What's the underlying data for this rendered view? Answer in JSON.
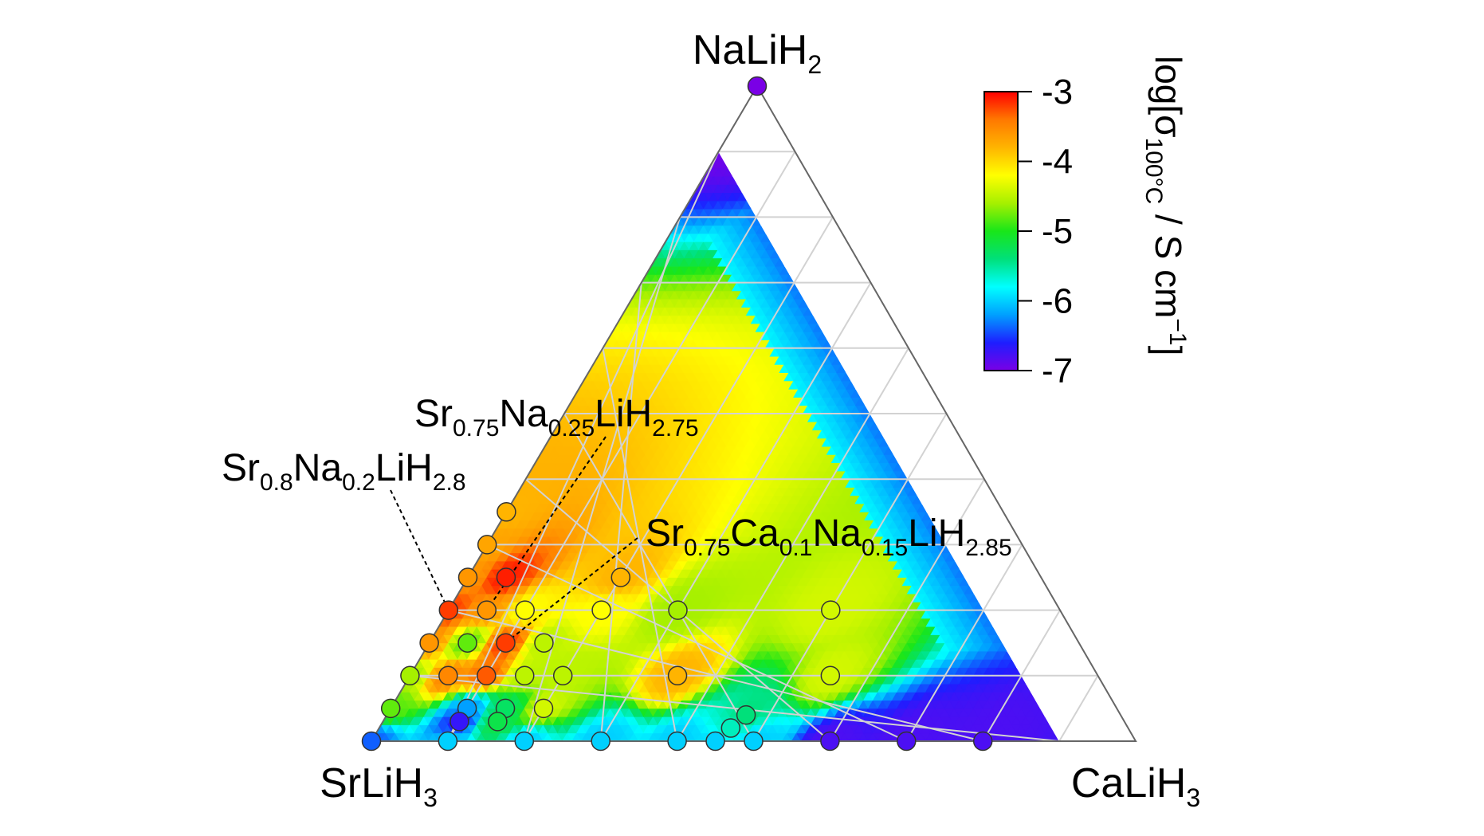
{
  "chart_data": {
    "type": "ternary-contour",
    "vertices": {
      "top": {
        "base": "NaLiH",
        "sub": "2"
      },
      "left": {
        "base": "SrLiH",
        "sub": "3"
      },
      "right": {
        "base": "CaLiH",
        "sub": "3"
      }
    },
    "colorbar": {
      "label": "log[σ100°C / S cm−1]",
      "label_parts": {
        "pre": "log[σ",
        "sub": "100°C",
        "mid": " / S cm",
        "sup": "−1",
        "post": "]"
      },
      "ticks": [
        "-3",
        "-4",
        "-5",
        "-6",
        "-7"
      ],
      "range": [
        -7,
        -3
      ],
      "colors": [
        "#7a00e6",
        "#1e1eff",
        "#00a0ff",
        "#00ffff",
        "#00e07a",
        "#19e619",
        "#a6f000",
        "#ffff00",
        "#ffb400",
        "#ff7800",
        "#ff0000"
      ]
    },
    "grid": true,
    "grid_step": 0.1,
    "points": [
      {
        "Na": 1.0,
        "Ca": 0.0,
        "logsigma": -7.0
      },
      {
        "Na": 0.0,
        "Ca": 0.0,
        "logsigma": -6.4
      },
      {
        "Na": 0.05,
        "Ca": 0.0,
        "logsigma": -4.8
      },
      {
        "Na": 0.1,
        "Ca": 0.0,
        "logsigma": -4.6
      },
      {
        "Na": 0.15,
        "Ca": 0.0,
        "logsigma": -3.6
      },
      {
        "Na": 0.2,
        "Ca": 0.0,
        "logsigma": -3.2
      },
      {
        "Na": 0.25,
        "Ca": 0.0,
        "logsigma": -3.6
      },
      {
        "Na": 0.3,
        "Ca": 0.0,
        "logsigma": -3.7
      },
      {
        "Na": 0.35,
        "Ca": 0.0,
        "logsigma": -3.8
      },
      {
        "Na": 0.2,
        "Ca": 0.05,
        "logsigma": -3.6
      },
      {
        "Na": 0.25,
        "Ca": 0.05,
        "logsigma": -3.1
      },
      {
        "Na": 0.15,
        "Ca": 0.05,
        "logsigma": -4.8
      },
      {
        "Na": 0.1,
        "Ca": 0.1,
        "logsigma": -3.3
      },
      {
        "Na": 0.15,
        "Ca": 0.1,
        "logsigma": -3.2
      },
      {
        "Na": 0.05,
        "Ca": 0.1,
        "logsigma": -6.2
      },
      {
        "Na": 0.03,
        "Ca": 0.1,
        "logsigma": -6.7
      },
      {
        "Na": 0.1,
        "Ca": 0.05,
        "logsigma": -3.5
      },
      {
        "Na": 0.2,
        "Ca": 0.1,
        "logsigma": -4.2
      },
      {
        "Na": 0.15,
        "Ca": 0.15,
        "logsigma": -4.5
      },
      {
        "Na": 0.1,
        "Ca": 0.15,
        "logsigma": -4.5
      },
      {
        "Na": 0.05,
        "Ca": 0.15,
        "logsigma": -5.3
      },
      {
        "Na": 0.03,
        "Ca": 0.15,
        "logsigma": -5.2
      },
      {
        "Na": 0.2,
        "Ca": 0.2,
        "logsigma": -4.2
      },
      {
        "Na": 0.25,
        "Ca": 0.2,
        "logsigma": -3.8
      },
      {
        "Na": 0.1,
        "Ca": 0.2,
        "logsigma": -4.5
      },
      {
        "Na": 0.05,
        "Ca": 0.2,
        "logsigma": -4.4
      },
      {
        "Na": 0.2,
        "Ca": 0.3,
        "logsigma": -4.6
      },
      {
        "Na": 0.1,
        "Ca": 0.35,
        "logsigma": -3.8
      },
      {
        "Na": 0.2,
        "Ca": 0.5,
        "logsigma": -4.4
      },
      {
        "Na": 0.1,
        "Ca": 0.55,
        "logsigma": -4.4
      },
      {
        "Na": 0.0,
        "Ca": 0.1,
        "logsigma": -6.0
      },
      {
        "Na": 0.0,
        "Ca": 0.2,
        "logsigma": -6.0
      },
      {
        "Na": 0.0,
        "Ca": 0.3,
        "logsigma": -6.0
      },
      {
        "Na": 0.0,
        "Ca": 0.4,
        "logsigma": -6.0
      },
      {
        "Na": 0.0,
        "Ca": 0.45,
        "logsigma": -6.0
      },
      {
        "Na": 0.0,
        "Ca": 0.5,
        "logsigma": -6.0
      },
      {
        "Na": 0.02,
        "Ca": 0.46,
        "logsigma": -5.6
      },
      {
        "Na": 0.04,
        "Ca": 0.47,
        "logsigma": -5.4
      },
      {
        "Na": 0.0,
        "Ca": 0.6,
        "logsigma": -6.8
      },
      {
        "Na": 0.0,
        "Ca": 0.7,
        "logsigma": -6.8
      },
      {
        "Na": 0.0,
        "Ca": 0.8,
        "logsigma": -6.8
      }
    ],
    "annotations": [
      {
        "parts": [
          {
            "t": "Sr"
          },
          {
            "t": "0.75",
            "sub": true
          },
          {
            "t": "Na"
          },
          {
            "t": "0.25",
            "sub": true
          },
          {
            "t": "LiH"
          },
          {
            "t": "2.75",
            "sub": true
          }
        ],
        "target": {
          "Na": 0.2,
          "Ca": 0.05
        }
      },
      {
        "parts": [
          {
            "t": "Sr"
          },
          {
            "t": "0.8",
            "sub": true
          },
          {
            "t": "Na"
          },
          {
            "t": "0.2",
            "sub": true
          },
          {
            "t": "LiH"
          },
          {
            "t": "2.8",
            "sub": true
          }
        ],
        "target": {
          "Na": 0.2,
          "Ca": 0.0
        }
      },
      {
        "parts": [
          {
            "t": "Sr"
          },
          {
            "t": "0.75",
            "sub": true
          },
          {
            "t": "Ca"
          },
          {
            "t": "0.1",
            "sub": true
          },
          {
            "t": "Na"
          },
          {
            "t": "0.15",
            "sub": true
          },
          {
            "t": "LiH"
          },
          {
            "t": "2.85",
            "sub": true
          }
        ],
        "target": {
          "Na": 0.15,
          "Ca": 0.1
        }
      }
    ]
  }
}
